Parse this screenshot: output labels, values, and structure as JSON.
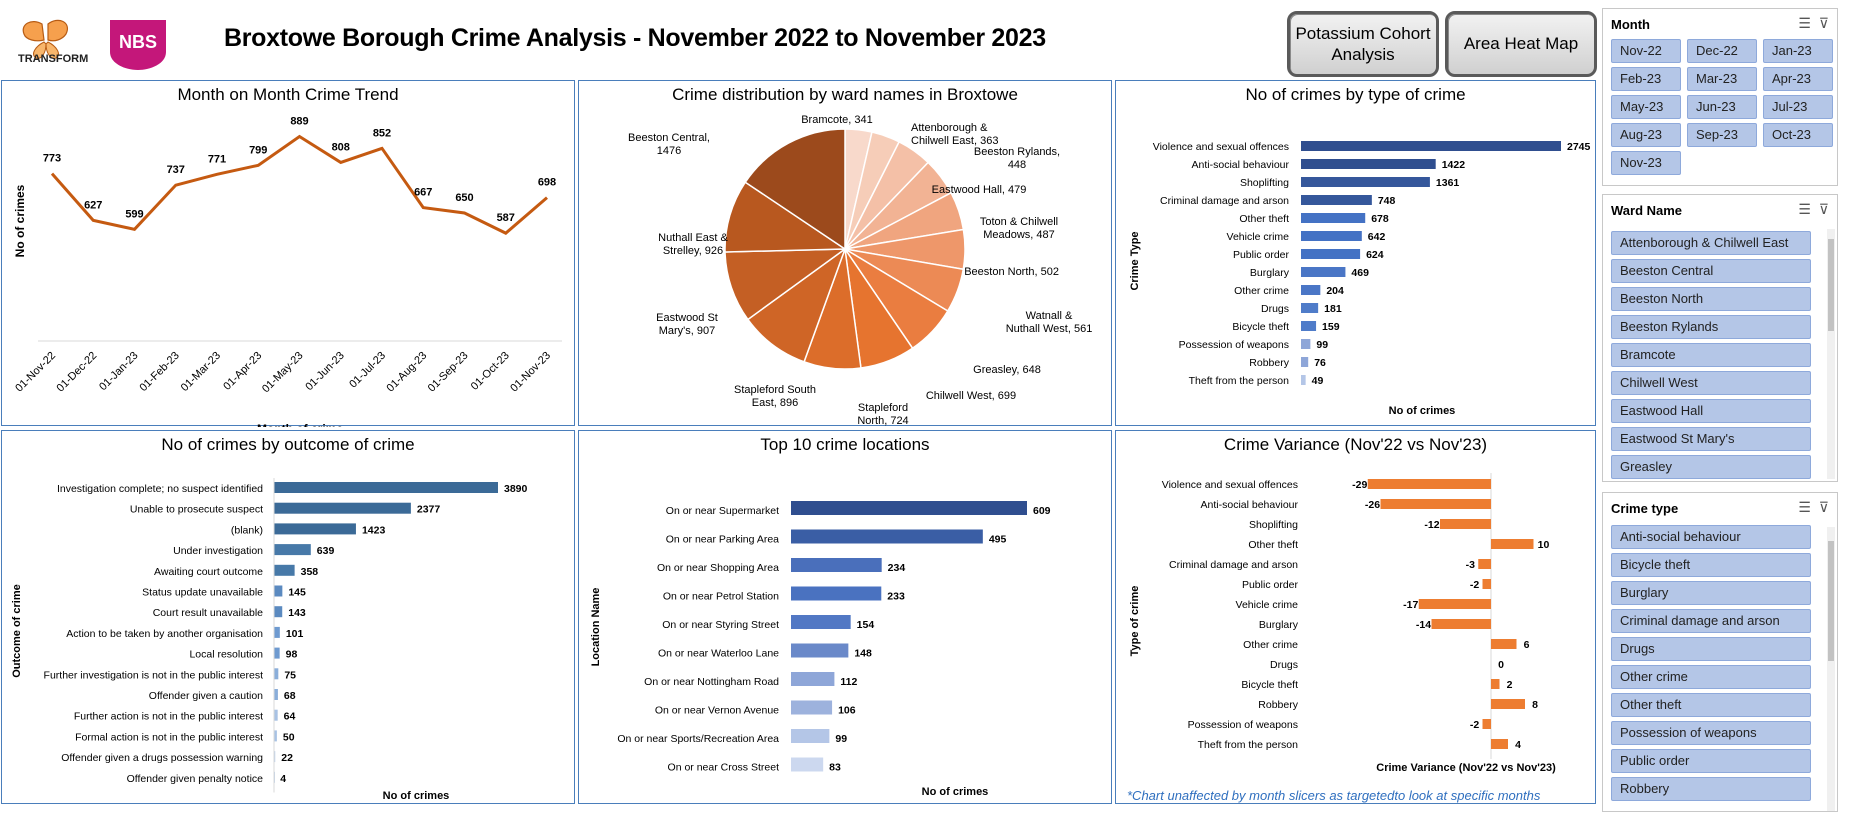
{
  "header": {
    "title": "Broxtowe Borough Crime Analysis  - November 2022 to November 2023",
    "logo_left_text": "TRANSFORM",
    "logo_right_text": "NBS",
    "buttons": [
      "Potassium Cohort Analysis",
      "Area Heat Map"
    ]
  },
  "trend": {
    "title": "Month on Month Crime Trend",
    "chart_data": {
      "type": "line",
      "categories": [
        "01-Nov-22",
        "01-Dec-22",
        "01-Jan-23",
        "01-Feb-23",
        "01-Mar-23",
        "01-Apr-23",
        "01-May-23",
        "01-Jun-23",
        "01-Jul-23",
        "01-Aug-23",
        "01-Sep-23",
        "01-Oct-23",
        "01-Nov-23"
      ],
      "values": [
        773,
        627,
        599,
        737,
        771,
        799,
        889,
        808,
        852,
        667,
        650,
        587,
        698
      ],
      "xlabel": "Month of crime",
      "ylabel": "No of crimes",
      "color": "#c55a11"
    }
  },
  "wards": {
    "title": "Crime distribution by ward names in Broxtowe",
    "chart_data": {
      "type": "pie",
      "slices": [
        {
          "label": "Bramcote, 341",
          "value": 341,
          "color": "#f8d9cb"
        },
        {
          "label": "Attenborough & Chilwell East, 363",
          "value": 363,
          "color": "#f6cdb8"
        },
        {
          "label": "Beeston Rylands, 448",
          "value": 448,
          "color": "#f4c0a7"
        },
        {
          "label": "Eastwood Hall, 479",
          "value": 479,
          "color": "#f2b394"
        },
        {
          "label": "Toton & Chilwell Meadows, 487",
          "value": 487,
          "color": "#f0a57f"
        },
        {
          "label": "Beeston North, 502",
          "value": 502,
          "color": "#ee976a"
        },
        {
          "label": "Watnall & Nuthall West, 561",
          "value": 561,
          "color": "#ec8a55"
        },
        {
          "label": "Greasley, 648",
          "value": 648,
          "color": "#ea7d40"
        },
        {
          "label": "Chilwell West, 699",
          "value": 699,
          "color": "#e6742f"
        },
        {
          "label": "Stapleford North, 724",
          "value": 724,
          "color": "#dc6d2a"
        },
        {
          "label": "Stapleford South East, 896",
          "value": 896,
          "color": "#cf6526"
        },
        {
          "label": "Eastwood St Mary's, 907",
          "value": 907,
          "color": "#c45f24"
        },
        {
          "label": "Nuthall East & Strelley, 926",
          "value": 926,
          "color": "#b8581f"
        },
        {
          "label": "Beeston Central, 1476",
          "value": 1476,
          "color": "#9c4a1c"
        }
      ]
    }
  },
  "types": {
    "title": "No of crimes by type of crime",
    "chart_data": {
      "type": "bar",
      "categories": [
        "Violence and sexual offences",
        "Anti-social behaviour",
        "Shoplifting",
        "Criminal damage and arson",
        "Other theft",
        "Vehicle crime",
        "Public order",
        "Burglary",
        "Other crime",
        "Drugs",
        "Bicycle theft",
        "Possession of weapons",
        "Robbery",
        "Theft from the person"
      ],
      "values": [
        2745,
        1422,
        1361,
        748,
        678,
        642,
        624,
        469,
        204,
        181,
        159,
        99,
        76,
        49
      ],
      "xlabel": "No of crimes",
      "ylabel": "Crime Type"
    }
  },
  "outcomes": {
    "title": "No of crimes by outcome of crime",
    "chart_data": {
      "type": "bar",
      "categories": [
        "Investigation complete; no suspect identified",
        "Unable to prosecute suspect",
        "(blank)",
        "Under investigation",
        "Awaiting court outcome",
        "Status update unavailable",
        "Court result unavailable",
        "Action to be taken by another organisation",
        "Local resolution",
        "Further investigation is not in the public interest",
        "Offender given a caution",
        "Further action is not in the public interest",
        "Formal action is not in the public interest",
        "Offender given a drugs possession warning",
        "Offender given penalty notice"
      ],
      "values": [
        3890,
        2377,
        1423,
        639,
        358,
        145,
        143,
        101,
        98,
        75,
        68,
        64,
        50,
        22,
        4
      ],
      "xlabel": "No of crimes",
      "ylabel": "Outcome of crime"
    }
  },
  "locations": {
    "title": "Top 10 crime locations",
    "chart_data": {
      "type": "bar",
      "categories": [
        "On or near Supermarket",
        "On or near Parking Area",
        "On or near Shopping Area",
        "On or near Petrol Station",
        "On or near Styring Street",
        "On or near Waterloo Lane",
        "On or near Nottingham Road",
        "On or near Vernon Avenue",
        "On or near Sports/Recreation Area",
        "On or near Cross Street"
      ],
      "values": [
        609,
        495,
        234,
        233,
        154,
        148,
        112,
        106,
        99,
        83
      ],
      "xlabel": "No of crimes",
      "ylabel": "Location Name"
    }
  },
  "variance": {
    "title": "Crime Variance (Nov'22 vs Nov'23)",
    "chart_data": {
      "type": "bar",
      "categories": [
        "Violence and sexual offences",
        "Anti-social behaviour",
        "Shoplifting",
        "Other theft",
        "Criminal damage and arson",
        "Public order",
        "Vehicle crime",
        "Burglary",
        "Other crime",
        "Drugs",
        "Bicycle theft",
        "Robbery",
        "Possession of weapons",
        "Theft from the person"
      ],
      "values": [
        -29,
        -26,
        -12,
        10,
        -3,
        -2,
        -17,
        -14,
        6,
        0,
        2,
        8,
        -2,
        4
      ],
      "xlabel": "Crime Variance (Nov'22 vs Nov'23)",
      "ylabel": "Type of crime",
      "color": "#ed7d31"
    },
    "note": "*Chart unaffected by month slicers as targetedto look at specific months"
  },
  "slicers": {
    "month": {
      "title": "Month",
      "items": [
        "Nov-22",
        "Dec-22",
        "Jan-23",
        "Feb-23",
        "Mar-23",
        "Apr-23",
        "May-23",
        "Jun-23",
        "Jul-23",
        "Aug-23",
        "Sep-23",
        "Oct-23",
        "Nov-23"
      ]
    },
    "ward": {
      "title": "Ward Name",
      "items": [
        "Attenborough & Chilwell East",
        "Beeston Central",
        "Beeston North",
        "Beeston Rylands",
        "Bramcote",
        "Chilwell West",
        "Eastwood Hall",
        "Eastwood St Mary's",
        "Greasley"
      ]
    },
    "crime": {
      "title": "Crime type",
      "items": [
        "Anti-social behaviour",
        "Bicycle theft",
        "Burglary",
        "Criminal damage and arson",
        "Drugs",
        "Other crime",
        "Other theft",
        "Possession of weapons",
        "Public order",
        "Robbery"
      ]
    }
  }
}
